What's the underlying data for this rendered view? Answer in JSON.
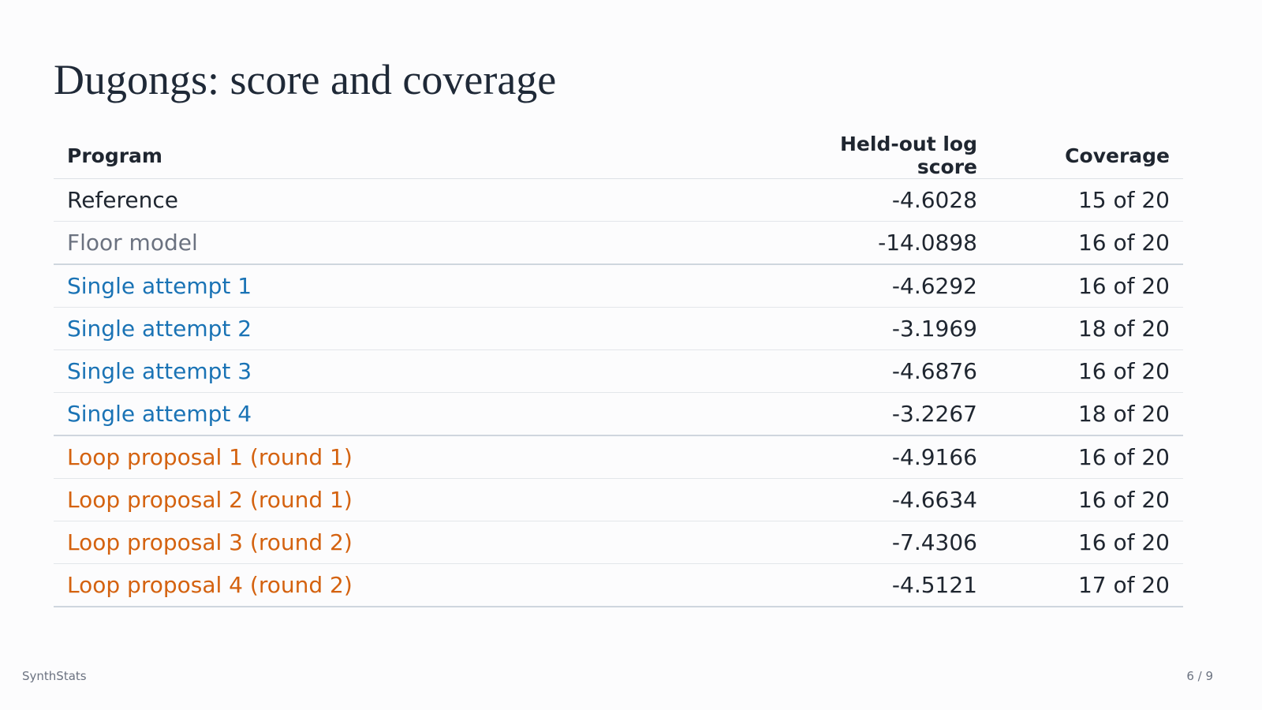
{
  "title": "Dugongs: score and coverage",
  "table": {
    "columns": [
      "Program",
      "Held-out log score",
      "Coverage"
    ],
    "rows": [
      [
        "Reference",
        "-4.6028",
        "15 of 20"
      ],
      [
        "Floor model",
        "-14.0898",
        "16 of 20"
      ],
      [
        "Single attempt 1",
        "-4.6292",
        "16 of 20"
      ],
      [
        "Single attempt 2",
        "-3.1969",
        "18 of 20"
      ],
      [
        "Single attempt 3",
        "-4.6876",
        "16 of 20"
      ],
      [
        "Single attempt 4",
        "-3.2267",
        "18 of 20"
      ],
      [
        "Loop proposal 1 (round 1)",
        "-4.9166",
        "16 of 20"
      ],
      [
        "Loop proposal 2 (round 1)",
        "-4.6634",
        "16 of 20"
      ],
      [
        "Loop proposal 3 (round 2)",
        "-7.4306",
        "16 of 20"
      ],
      [
        "Loop proposal 4 (round 2)",
        "-4.5121",
        "17 of 20"
      ]
    ]
  },
  "footer": {
    "brand": "SynthStats",
    "page": "6 / 9"
  }
}
